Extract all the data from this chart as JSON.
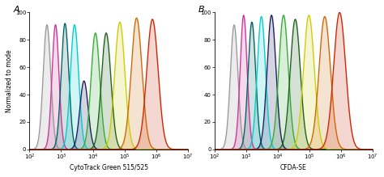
{
  "panel_A_label": "A",
  "panel_B_label": "B",
  "xlabel_A": "CytoTrack Green 515/525",
  "xlabel_B": "CFDA-SE",
  "ylabel": "Normalized to mode",
  "ylim": [
    0,
    100
  ],
  "yticks": [
    0,
    20,
    40,
    60,
    80,
    100
  ],
  "colors_A": [
    "#999999",
    "#cc3399",
    "#006060",
    "#00cccc",
    "#1a1a5e",
    "#33aa33",
    "#1a5e1a",
    "#cccc00",
    "#cc6600",
    "#cc2200"
  ],
  "colors_B": [
    "#999999",
    "#cc3399",
    "#006060",
    "#00cccc",
    "#1a1a5e",
    "#33aa33",
    "#1a5e1a",
    "#cccc00",
    "#cc6600",
    "#cc2200"
  ],
  "peak_centers_A": [
    2.55,
    2.82,
    3.12,
    3.42,
    3.72,
    4.08,
    4.42,
    4.85,
    5.38,
    5.88
  ],
  "peak_centers_B": [
    2.62,
    2.92,
    3.18,
    3.48,
    3.8,
    4.18,
    4.55,
    4.98,
    5.48,
    5.95
  ],
  "peak_widths_A": [
    0.12,
    0.11,
    0.12,
    0.13,
    0.13,
    0.14,
    0.15,
    0.16,
    0.17,
    0.18
  ],
  "peak_widths_B": [
    0.12,
    0.11,
    0.12,
    0.13,
    0.14,
    0.15,
    0.16,
    0.17,
    0.18,
    0.19
  ],
  "peak_heights_A": [
    91,
    91,
    92,
    91,
    50,
    85,
    85,
    93,
    96,
    95
  ],
  "peak_heights_B": [
    91,
    98,
    93,
    97,
    98,
    98,
    95,
    98,
    97,
    100
  ],
  "fill_alpha": 0.18,
  "line_width": 0.9,
  "bg_color": "#ffffff",
  "xlog_ticks": [
    100,
    1000,
    10000,
    100000,
    1000000,
    10000000
  ],
  "xlog_min": 100,
  "xlog_max": 10000000
}
